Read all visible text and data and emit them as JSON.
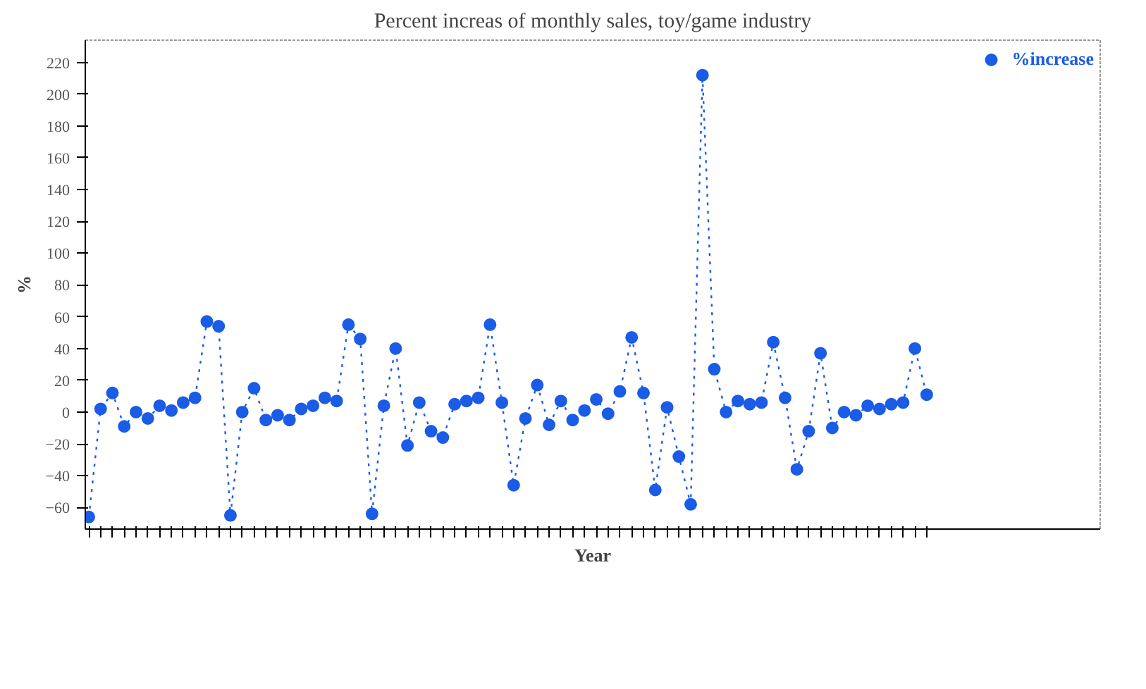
{
  "chart_data": {
    "type": "line",
    "title": "Percent increas of monthly sales, toy/game industry",
    "xlabel": "Year",
    "ylabel": "%",
    "categories": [
      null,
      null,
      null,
      null,
      null,
      null,
      null,
      null,
      null,
      null,
      null,
      null,
      null,
      null,
      null,
      null,
      null,
      null,
      null,
      null,
      null,
      null,
      null,
      null,
      null,
      null,
      null,
      null,
      null,
      null,
      null,
      null,
      null,
      null,
      null,
      null,
      null,
      null,
      null,
      null,
      null,
      null,
      null,
      null,
      null,
      null,
      null,
      null,
      null,
      null,
      null,
      null,
      null,
      null,
      null,
      null,
      null,
      null,
      null,
      null,
      null,
      null,
      null,
      null,
      null,
      null,
      null,
      null,
      null,
      null,
      null,
      null
    ],
    "series": [
      {
        "name": "%increase",
        "color": "#1a5ce6",
        "values": [
          -66,
          2,
          12,
          -9,
          0,
          -4,
          4,
          1,
          6,
          9,
          57,
          54,
          -65,
          0,
          15,
          -5,
          -2,
          -5,
          2,
          4,
          9,
          7,
          55,
          46,
          -64,
          4,
          40,
          -21,
          6,
          -12,
          -16,
          5,
          7,
          9,
          55,
          6,
          -46,
          -4,
          17,
          -8,
          7,
          -5,
          1,
          8,
          -1,
          13,
          47,
          12,
          -49,
          3,
          -28,
          -58,
          212,
          27,
          0,
          7,
          5,
          6,
          44,
          9,
          -36,
          -12,
          37,
          -10,
          0,
          -2,
          4,
          2,
          5,
          6,
          40,
          11
        ]
      }
    ],
    "ylim": [
      -73.6,
      234
    ],
    "yticks": [
      -60,
      -40,
      -20,
      0,
      20,
      40,
      60,
      80,
      100,
      120,
      140,
      160,
      180,
      200,
      220
    ],
    "grid": false,
    "legend": "top right",
    "marker": "circle",
    "line_style": "dotted",
    "tick_labels": "y"
  }
}
